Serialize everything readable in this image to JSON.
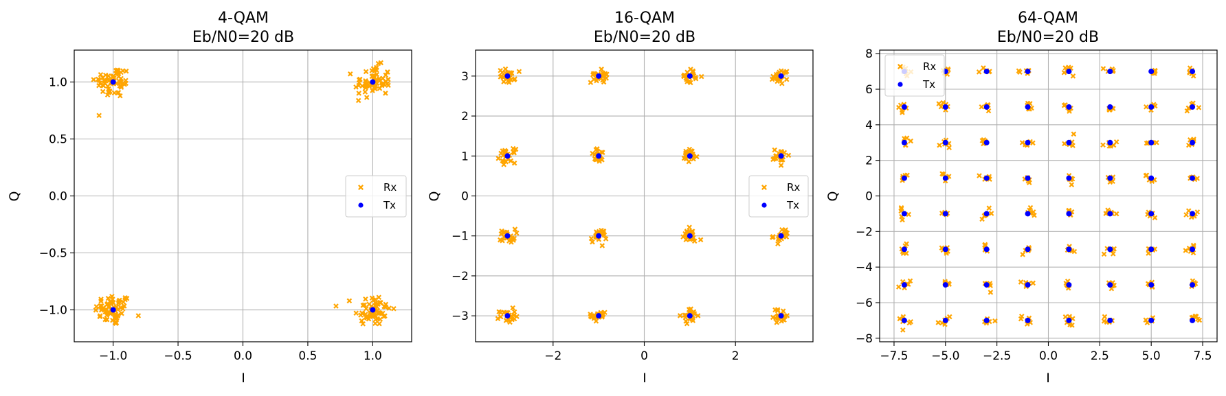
{
  "colors": {
    "rx": "#ffa500",
    "tx": "#0000ff",
    "grid": "#b0b0b0",
    "axes": "#000000"
  },
  "chart_data": [
    {
      "type": "scatter",
      "title": "4-QAM",
      "subtitle": "Eb/N0=20 dB",
      "xlabel": "I",
      "ylabel": "Q",
      "xlim": [
        -1.3,
        1.3
      ],
      "ylim": [
        -1.28,
        1.28
      ],
      "xticks": [
        -1.0,
        -0.5,
        0.0,
        0.5,
        1.0
      ],
      "xtick_labels": [
        "−1.0",
        "−0.5",
        "0.0",
        "0.5",
        "1.0"
      ],
      "yticks": [
        -1.0,
        -0.5,
        0.0,
        0.5,
        1.0
      ],
      "ytick_labels": [
        "−1.0",
        "−0.5",
        "0.0",
        "0.5",
        "1.0"
      ],
      "grid": true,
      "legend_position": "center-right",
      "levels": [
        -1,
        1
      ],
      "noise_spread": 0.14,
      "points_per_symbol": 60,
      "series": [
        {
          "name": "Rx",
          "marker": "x",
          "color": "#ffa500"
        },
        {
          "name": "Tx",
          "marker": "o",
          "color": "#0000ff",
          "points": [
            [
              -1,
              1
            ],
            [
              1,
              1
            ],
            [
              -1,
              -1
            ],
            [
              1,
              -1
            ]
          ]
        }
      ]
    },
    {
      "type": "scatter",
      "title": "16-QAM",
      "subtitle": "Eb/N0=20 dB",
      "xlabel": "I",
      "ylabel": "Q",
      "xlim": [
        -3.7,
        3.7
      ],
      "ylim": [
        -3.65,
        3.65
      ],
      "xticks": [
        -2,
        0,
        2
      ],
      "xtick_labels": [
        "−2",
        "0",
        "2"
      ],
      "yticks": [
        -3,
        -2,
        -1,
        0,
        1,
        2,
        3
      ],
      "ytick_labels": [
        "−3",
        "−2",
        "−1",
        "0",
        "1",
        "2",
        "3"
      ],
      "grid": true,
      "legend_position": "center-right",
      "levels": [
        -3,
        -1,
        1,
        3
      ],
      "noise_spread": 0.17,
      "points_per_symbol": 24,
      "series": [
        {
          "name": "Rx",
          "marker": "x",
          "color": "#ffa500"
        },
        {
          "name": "Tx",
          "marker": "o",
          "color": "#0000ff"
        }
      ]
    },
    {
      "type": "scatter",
      "title": "64-QAM",
      "subtitle": "Eb/N0=20 dB",
      "xlabel": "I",
      "ylabel": "Q",
      "xlim": [
        -8.2,
        8.2
      ],
      "ylim": [
        -8.2,
        8.2
      ],
      "xticks": [
        -7.5,
        -5.0,
        -2.5,
        0.0,
        2.5,
        5.0,
        7.5
      ],
      "xtick_labels": [
        "−7.5",
        "−5.0",
        "−2.5",
        "0.0",
        "2.5",
        "5.0",
        "7.5"
      ],
      "yticks": [
        -8,
        -6,
        -4,
        -2,
        0,
        2,
        4,
        6,
        8
      ],
      "ytick_labels": [
        "−8",
        "−6",
        "−4",
        "−2",
        "0",
        "2",
        "4",
        "6",
        "8"
      ],
      "grid": true,
      "legend_position": "top-left",
      "levels": [
        -7,
        -5,
        -3,
        -1,
        1,
        3,
        5,
        7
      ],
      "noise_spread": 0.28,
      "points_per_symbol": 6,
      "series": [
        {
          "name": "Rx",
          "marker": "x",
          "color": "#ffa500"
        },
        {
          "name": "Tx",
          "marker": "o",
          "color": "#0000ff"
        }
      ]
    }
  ]
}
